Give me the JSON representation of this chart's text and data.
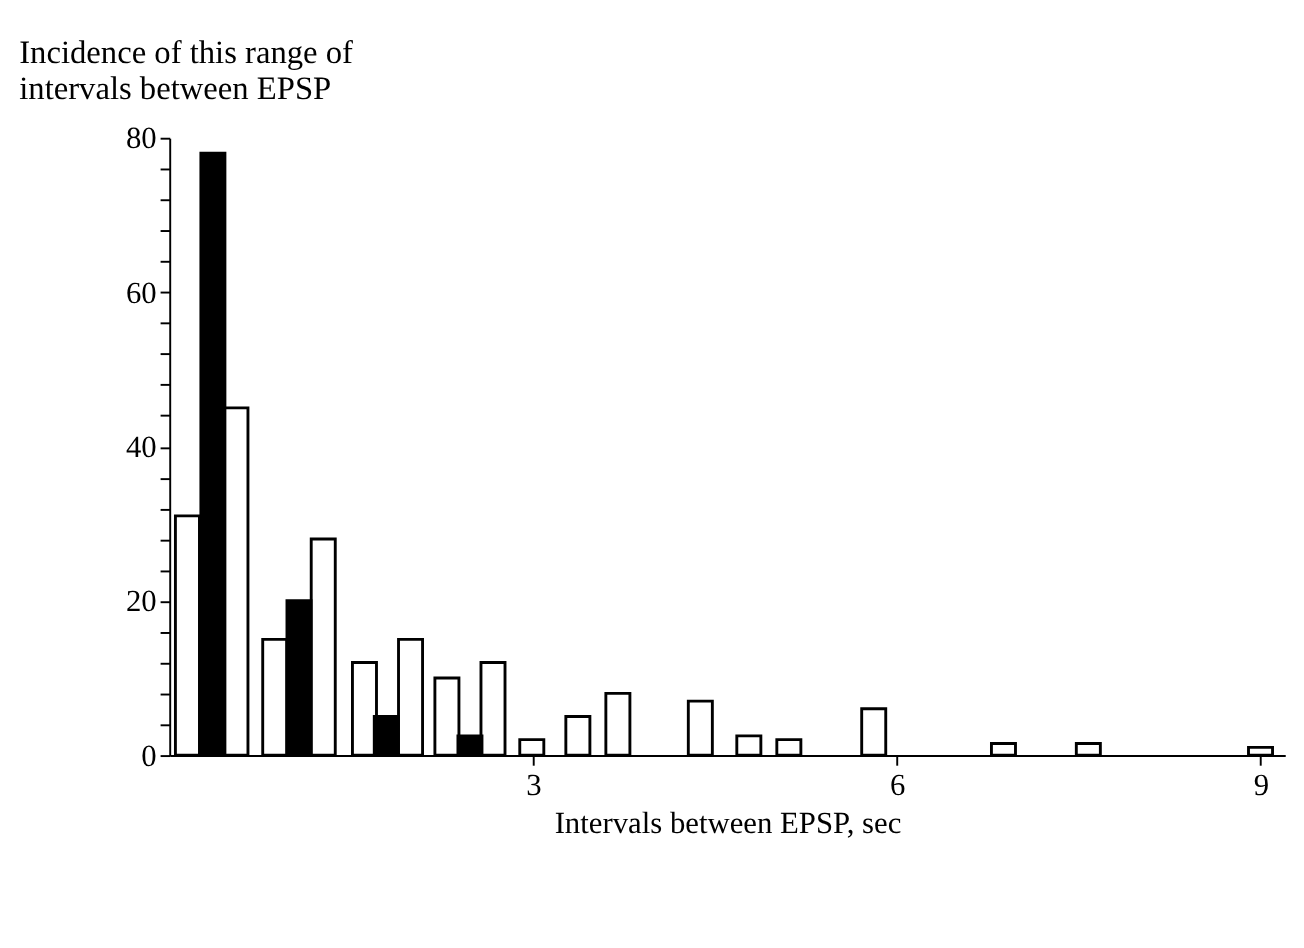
{
  "chart_data": {
    "type": "bar",
    "ylabel": "Incidence of this range of\nintervals between EPSP",
    "xlabel": "Intervals between EPSP, sec",
    "series": [
      {
        "color": "#ffffff",
        "x": [
          0.15,
          0.55,
          0.87,
          1.27,
          1.61,
          1.99,
          2.29,
          2.67,
          2.99,
          3.37,
          3.7,
          4.38,
          4.78,
          5.11,
          5.81,
          6.88,
          7.58,
          9.0
        ],
        "values": [
          31,
          45,
          15,
          28,
          12,
          15,
          10,
          12,
          2,
          5,
          8,
          7,
          2.5,
          2,
          6,
          1.5,
          1.5,
          1
        ]
      },
      {
        "color": "#000000",
        "x": [
          0.36,
          1.07,
          1.79,
          2.48
        ],
        "values": [
          78,
          20,
          5,
          2.5
        ]
      }
    ],
    "xlim": [
      0,
      9.2
    ],
    "xticks": [
      3,
      6,
      9
    ],
    "ylim": [
      0,
      80
    ],
    "yticks": [
      0,
      {
        "value": 4,
        "label": null
      },
      {
        "value": 8,
        "label": null
      },
      {
        "value": 12,
        "label": null
      },
      {
        "value": 16,
        "label": null
      },
      20,
      {
        "value": 24,
        "label": null
      },
      {
        "value": 28,
        "label": null
      },
      {
        "value": 32,
        "label": null
      },
      {
        "value": 36,
        "label": null
      },
      40,
      {
        "value": 44,
        "label": null
      },
      {
        "value": 48,
        "label": null
      },
      {
        "value": 52,
        "label": null
      },
      {
        "value": 56,
        "label": null
      },
      60,
      {
        "value": 64,
        "label": null
      },
      {
        "value": 68,
        "label": null
      },
      {
        "value": 72,
        "label": null
      },
      {
        "value": 76,
        "label": null
      },
      80
    ],
    "grid": false
  }
}
